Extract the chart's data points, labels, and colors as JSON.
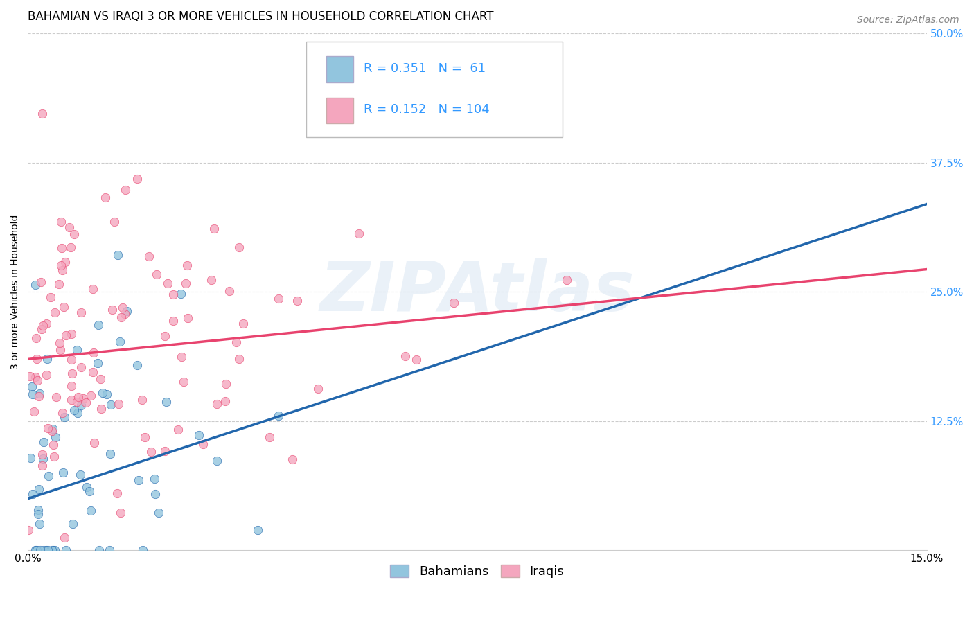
{
  "title": "BAHAMIAN VS IRAQI 3 OR MORE VEHICLES IN HOUSEHOLD CORRELATION CHART",
  "source": "Source: ZipAtlas.com",
  "ylabel": "3 or more Vehicles in Household",
  "xlim": [
    0.0,
    0.15
  ],
  "ylim": [
    0.0,
    0.5
  ],
  "x_tick_labels": [
    "0.0%",
    "15.0%"
  ],
  "y_ticks_right": [
    0.125,
    0.25,
    0.375,
    0.5
  ],
  "y_tick_labels_right": [
    "12.5%",
    "25.0%",
    "37.5%",
    "50.0%"
  ],
  "bahamian_color": "#92c5de",
  "iraqi_color": "#f4a6be",
  "bahamian_line_color": "#2166ac",
  "iraqi_line_color": "#e8436e",
  "R_bahamian": 0.351,
  "N_bahamian": 61,
  "R_iraqi": 0.152,
  "N_iraqi": 104,
  "legend_label_bahamian": "Bahamians",
  "legend_label_iraqi": "Iraqis",
  "watermark": "ZIPAtlas",
  "blue_line_y0": 0.05,
  "blue_line_y1": 0.335,
  "pink_line_y0": 0.185,
  "pink_line_y1": 0.272,
  "title_fontsize": 12,
  "source_fontsize": 10,
  "axis_fontsize": 10,
  "tick_fontsize": 11,
  "legend_fontsize": 13
}
